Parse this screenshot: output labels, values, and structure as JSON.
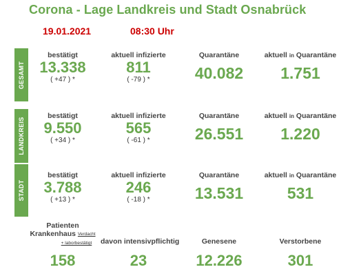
{
  "title": "Corona - Lage Landkreis und Stadt Osnabrück",
  "date": "19.01.2021",
  "time": "08:30 Uhr",
  "sections": [
    {
      "side_label": "GESAMT",
      "confirmed": {
        "label": "bestätigt",
        "value": "13.338",
        "change": "( +47 ) *"
      },
      "active": {
        "label": "aktuell infizierte",
        "value": "811",
        "change": "( -79 ) *"
      },
      "quarantine": {
        "label": "Quarantäne",
        "value": "40.082"
      },
      "current_quarantine": {
        "label_a": "aktuell",
        "label_b": "in",
        "label_c": "Quarantäne",
        "value": "1.751"
      }
    },
    {
      "side_label": "LANDKREIS",
      "confirmed": {
        "label": "bestätigt",
        "value": "9.550",
        "change": "( +34 ) *"
      },
      "active": {
        "label": "aktuell infizierte",
        "value": "565",
        "change": "( -61 ) *"
      },
      "quarantine": {
        "label": "Quarantäne",
        "value": "26.551"
      },
      "current_quarantine": {
        "label_a": "aktuell",
        "label_b": "in",
        "label_c": "Quarantäne",
        "value": "1.220"
      }
    },
    {
      "side_label": "STADT",
      "confirmed": {
        "label": "bestätigt",
        "value": "3.788",
        "change": "( +13 ) *"
      },
      "active": {
        "label": "aktuell infizierte",
        "value": "246",
        "change": "( -18 ) *"
      },
      "quarantine": {
        "label": "Quarantäne",
        "value": "13.531"
      },
      "current_quarantine": {
        "label_a": "aktuell",
        "label_b": "in",
        "label_c": "Quarantäne",
        "value": "531"
      }
    }
  ],
  "bottom": {
    "patients": {
      "label_line1": "Patienten",
      "label_line2": "Krankenhaus",
      "label_sub": "Verdacht",
      "label_line3": "+ laborbestätigt",
      "value": "158"
    },
    "intensive": {
      "label": "davon intensivpflichtig",
      "value": "23"
    },
    "recovered": {
      "label": "Genesene",
      "value": "12.226"
    },
    "deceased": {
      "label": "Verstorbene",
      "value": "301"
    }
  },
  "colors": {
    "green": "#6aa84f",
    "red": "#cc0000"
  }
}
